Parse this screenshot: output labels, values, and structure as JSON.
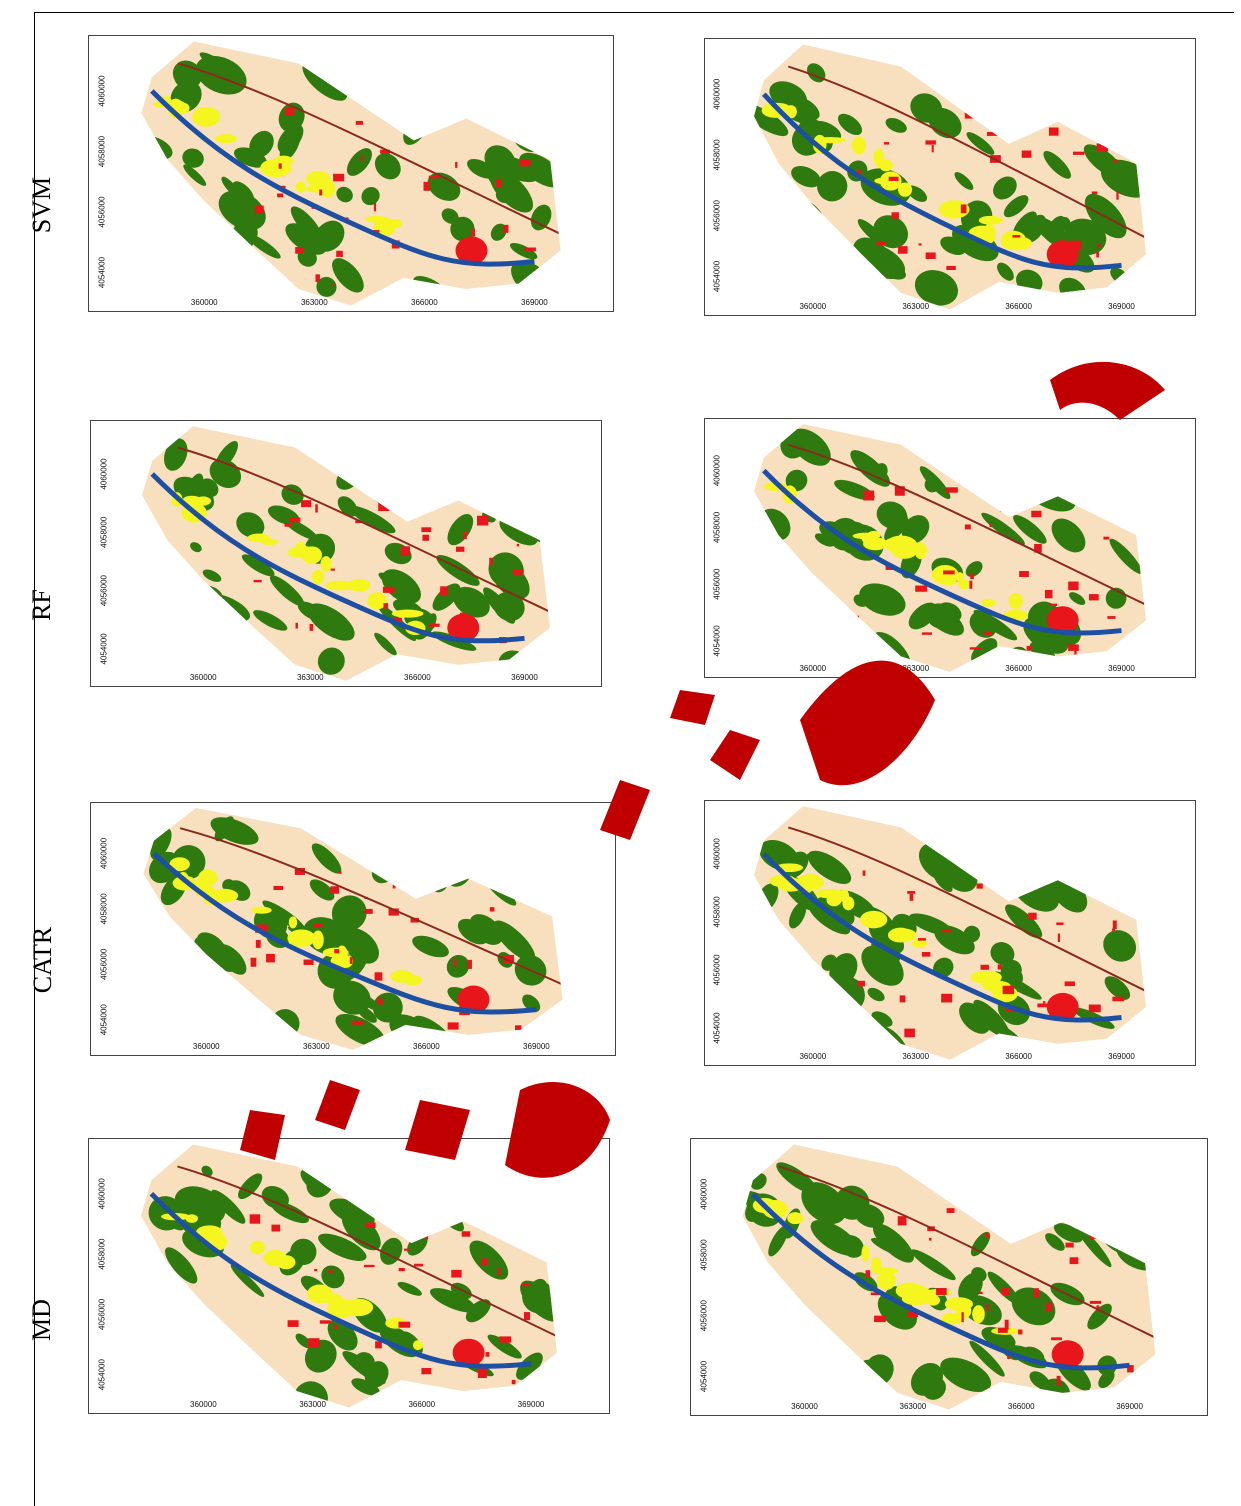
{
  "row_labels": [
    "SVM",
    "RF",
    "CATR",
    "MD"
  ],
  "x_ticks": [
    "360000",
    "363000",
    "366000",
    "369000"
  ],
  "y_ticks": [
    "4060000",
    "4058000",
    "4056000",
    "4054000"
  ],
  "colors": {
    "background_land": "#f8dfbd",
    "vegetation": "#2e7a0e",
    "urban": "#e8151b",
    "bare": "#f5f520",
    "water": "#1d4fa3",
    "road": "#8b2a1c",
    "watermark": "#c00000"
  }
}
